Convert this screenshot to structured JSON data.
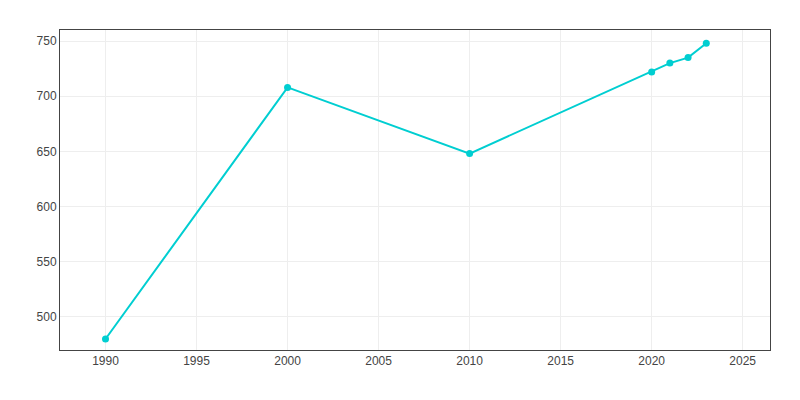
{
  "chart_data": {
    "type": "line",
    "x": [
      1990,
      2000,
      2010,
      2020,
      2021,
      2022,
      2023
    ],
    "values": [
      480,
      708,
      648,
      722,
      730,
      735,
      748
    ],
    "color": "#00CED1",
    "marker": "circle",
    "xlim": [
      1987.5,
      2026.5
    ],
    "ylim": [
      470,
      760
    ],
    "xticks": [
      1990,
      1995,
      2000,
      2005,
      2010,
      2015,
      2020,
      2025
    ],
    "yticks": [
      500,
      550,
      600,
      650,
      700,
      750
    ],
    "grid": true
  }
}
